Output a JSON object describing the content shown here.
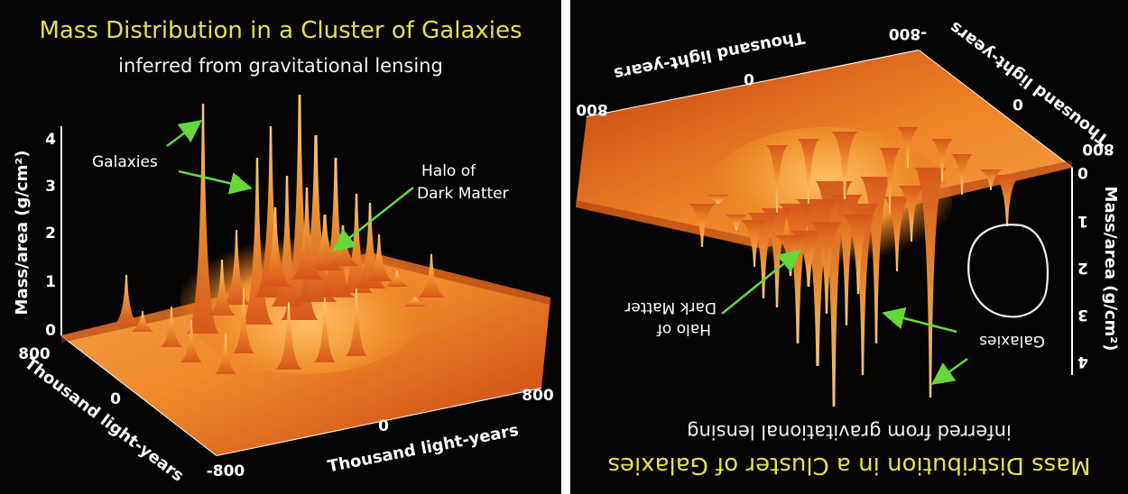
{
  "title": "Mass Distribution in a Cluster of Galaxies",
  "subtitle": "inferred from gravitational lensing",
  "z_axis": {
    "label": "Mass/area (g/cm²)",
    "ticks": [
      "0",
      "1",
      "2",
      "3",
      "4"
    ]
  },
  "x_axis": {
    "label": "Thousand light-years",
    "ticks": [
      "-800",
      "0",
      "800"
    ]
  },
  "y_axis": {
    "label": "Thousand light-years",
    "ticks": [
      "800",
      "0"
    ]
  },
  "annotations": {
    "galaxies": "Galaxies",
    "halo_line1": "Halo of",
    "halo_line2": "Dark Matter"
  },
  "colors": {
    "surface_light": "#f7a23a",
    "surface_dark": "#c0360c",
    "title": "#e6e04a",
    "arrow": "#67d83a",
    "marker_circle": "#f0f0f0"
  },
  "right_panel": {
    "rotated_degrees": 180,
    "marker": "hand-drawn-circle-around-peaks"
  }
}
